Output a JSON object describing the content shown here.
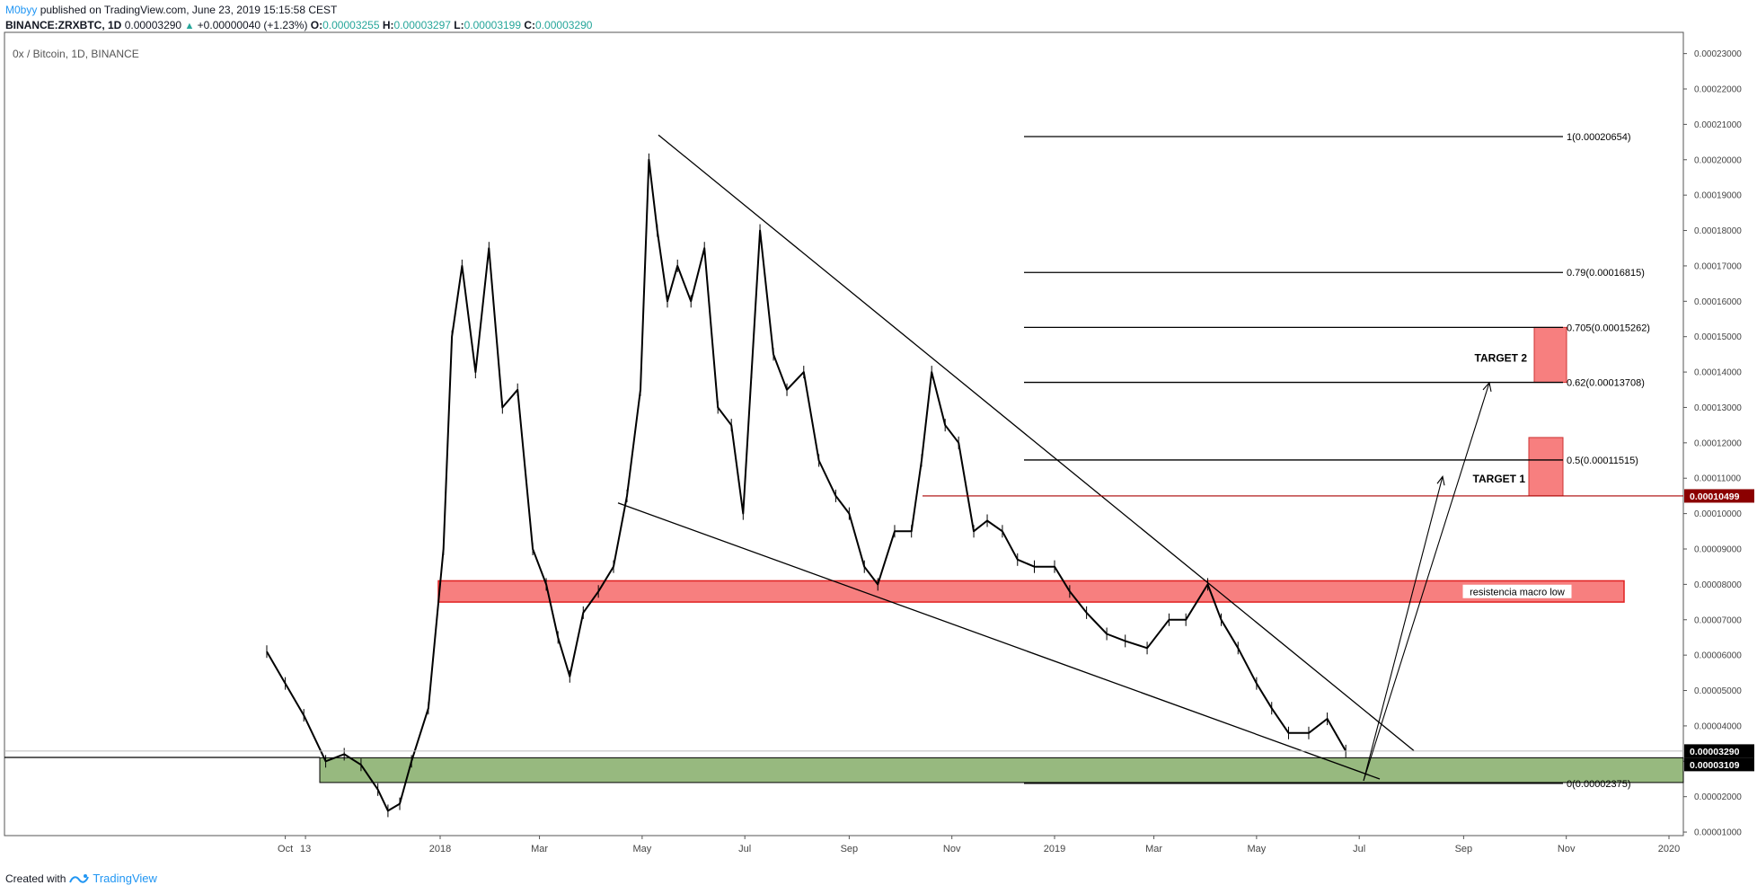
{
  "header": {
    "author": "M0byy",
    "published_text": "published on TradingView.com, June 23, 2019 15:15:58 CEST",
    "symbol_line": "BINANCE:ZRXBTC, 1D",
    "last": "0.00003290",
    "up_arrow": "▲",
    "change": "+0.00000040 (+1.23%)",
    "o_label": "O:",
    "o": "0.00003255",
    "h_label": "H:",
    "h": "0.00003297",
    "l_label": "L:",
    "l": "0.00003199",
    "c_label": "C:",
    "c": "0.00003290"
  },
  "footer": {
    "created_with": "Created with",
    "brand": "TradingView"
  },
  "chart_data": {
    "type": "candlestick",
    "title": "0x / Bitcoin, 1D, BINANCE",
    "ylim": [
      9e-06,
      0.000236
    ],
    "y_ticks": [
      "0.00023000",
      "0.00022000",
      "0.00021000",
      "0.00020000",
      "0.00019000",
      "0.00018000",
      "0.00017000",
      "0.00016000",
      "0.00015000",
      "0.00014000",
      "0.00013000",
      "0.00012000",
      "0.00011000",
      "0.00010000",
      "0.00009000",
      "0.00008000",
      "0.00007000",
      "0.00006000",
      "0.00005000",
      "0.00004000",
      "0.00003000",
      "0.00002000",
      "0.00001000"
    ],
    "x_ticks": [
      "Oct",
      "13",
      "2018",
      "Mar",
      "May",
      "Jul",
      "Sep",
      "Nov",
      "2019",
      "Mar",
      "May",
      "Jul",
      "Sep",
      "Nov",
      "2020"
    ],
    "series": [
      {
        "values": [
          {
            "date": "2017-09-20",
            "close": 6.1e-05
          },
          {
            "date": "2017-10-01",
            "close": 5.2e-05
          },
          {
            "date": "2017-10-12",
            "close": 4.3e-05
          },
          {
            "date": "2017-10-25",
            "close": 3e-05
          },
          {
            "date": "2017-11-05",
            "close": 3.2e-05
          },
          {
            "date": "2017-11-15",
            "close": 2.9e-05
          },
          {
            "date": "2017-11-25",
            "close": 2.2e-05
          },
          {
            "date": "2017-12-01",
            "close": 1.6e-05
          },
          {
            "date": "2017-12-08",
            "close": 1.8e-05
          },
          {
            "date": "2017-12-15",
            "close": 3e-05
          },
          {
            "date": "2017-12-25",
            "close": 4.5e-05
          },
          {
            "date": "2018-01-03",
            "close": 9e-05
          },
          {
            "date": "2018-01-08",
            "close": 0.00015
          },
          {
            "date": "2018-01-14",
            "close": 0.00017
          },
          {
            "date": "2018-01-22",
            "close": 0.00014
          },
          {
            "date": "2018-01-30",
            "close": 0.000175
          },
          {
            "date": "2018-02-07",
            "close": 0.00013
          },
          {
            "date": "2018-02-16",
            "close": 0.000135
          },
          {
            "date": "2018-02-25",
            "close": 9e-05
          },
          {
            "date": "2018-03-05",
            "close": 8e-05
          },
          {
            "date": "2018-03-12",
            "close": 6.5e-05
          },
          {
            "date": "2018-03-19",
            "close": 5.4e-05
          },
          {
            "date": "2018-03-27",
            "close": 7.2e-05
          },
          {
            "date": "2018-04-05",
            "close": 7.8e-05
          },
          {
            "date": "2018-04-14",
            "close": 8.5e-05
          },
          {
            "date": "2018-04-22",
            "close": 0.000105
          },
          {
            "date": "2018-04-30",
            "close": 0.000135
          },
          {
            "date": "2018-05-05",
            "close": 0.0002
          },
          {
            "date": "2018-05-10",
            "close": 0.00018
          },
          {
            "date": "2018-05-16",
            "close": 0.00016
          },
          {
            "date": "2018-05-22",
            "close": 0.00017
          },
          {
            "date": "2018-05-30",
            "close": 0.00016
          },
          {
            "date": "2018-06-07",
            "close": 0.000175
          },
          {
            "date": "2018-06-15",
            "close": 0.00013
          },
          {
            "date": "2018-06-23",
            "close": 0.000125
          },
          {
            "date": "2018-06-30",
            "close": 0.0001
          },
          {
            "date": "2018-07-05",
            "close": 0.00014
          },
          {
            "date": "2018-07-10",
            "close": 0.00018
          },
          {
            "date": "2018-07-18",
            "close": 0.000145
          },
          {
            "date": "2018-07-26",
            "close": 0.000135
          },
          {
            "date": "2018-08-05",
            "close": 0.00014
          },
          {
            "date": "2018-08-14",
            "close": 0.000115
          },
          {
            "date": "2018-08-24",
            "close": 0.000105
          },
          {
            "date": "2018-09-01",
            "close": 0.0001
          },
          {
            "date": "2018-09-10",
            "close": 8.5e-05
          },
          {
            "date": "2018-09-18",
            "close": 8e-05
          },
          {
            "date": "2018-09-28",
            "close": 9.5e-05
          },
          {
            "date": "2018-10-08",
            "close": 9.5e-05
          },
          {
            "date": "2018-10-14",
            "close": 0.000115
          },
          {
            "date": "2018-10-20",
            "close": 0.00014
          },
          {
            "date": "2018-10-28",
            "close": 0.000125
          },
          {
            "date": "2018-11-05",
            "close": 0.00012
          },
          {
            "date": "2018-11-14",
            "close": 9.5e-05
          },
          {
            "date": "2018-11-22",
            "close": 9.8e-05
          },
          {
            "date": "2018-12-01",
            "close": 9.5e-05
          },
          {
            "date": "2018-12-10",
            "close": 8.7e-05
          },
          {
            "date": "2018-12-20",
            "close": 8.5e-05
          },
          {
            "date": "2019-01-01",
            "close": 8.5e-05
          },
          {
            "date": "2019-01-10",
            "close": 7.8e-05
          },
          {
            "date": "2019-01-20",
            "close": 7.2e-05
          },
          {
            "date": "2019-02-01",
            "close": 6.6e-05
          },
          {
            "date": "2019-02-12",
            "close": 6.4e-05
          },
          {
            "date": "2019-02-25",
            "close": 6.2e-05
          },
          {
            "date": "2019-03-10",
            "close": 7e-05
          },
          {
            "date": "2019-03-20",
            "close": 7e-05
          },
          {
            "date": "2019-04-02",
            "close": 8e-05
          },
          {
            "date": "2019-04-10",
            "close": 7e-05
          },
          {
            "date": "2019-04-20",
            "close": 6.2e-05
          },
          {
            "date": "2019-05-01",
            "close": 5.2e-05
          },
          {
            "date": "2019-05-10",
            "close": 4.5e-05
          },
          {
            "date": "2019-05-20",
            "close": 3.8e-05
          },
          {
            "date": "2019-06-01",
            "close": 3.8e-05
          },
          {
            "date": "2019-06-12",
            "close": 4.2e-05
          },
          {
            "date": "2019-06-23",
            "close": 3.29e-05
          }
        ]
      }
    ],
    "fib_levels": [
      {
        "label": "1(0.00020654)",
        "value": 0.00020654
      },
      {
        "label": "0.79(0.00016815)",
        "value": 0.00016815
      },
      {
        "label": "0.705(0.00015262)",
        "value": 0.00015262
      },
      {
        "label": "0.62(0.00013708)",
        "value": 0.00013708
      },
      {
        "label": "0.5(0.00011515)",
        "value": 0.00011515
      },
      {
        "label": "0(0.00002375)",
        "value": 2.375e-05
      }
    ],
    "annotations": {
      "resistance_label": "resistencia macro low",
      "target1": "TARGET 1",
      "target2": "TARGET 2"
    },
    "price_tags": [
      {
        "label": "0.00010499",
        "value": 0.00010499,
        "color": "#8b0000"
      },
      {
        "label": "0.00003290",
        "value": 3.29e-05,
        "color": "#000000"
      },
      {
        "label": "0.00003109",
        "value": 3.109e-05,
        "color": "#000000"
      }
    ],
    "colors": {
      "resistance_fill": "#f77f7f",
      "resistance_border": "#e02020",
      "support_fill": "#97b97f",
      "target_fill": "#f77f7f",
      "candle": "#000000"
    }
  }
}
